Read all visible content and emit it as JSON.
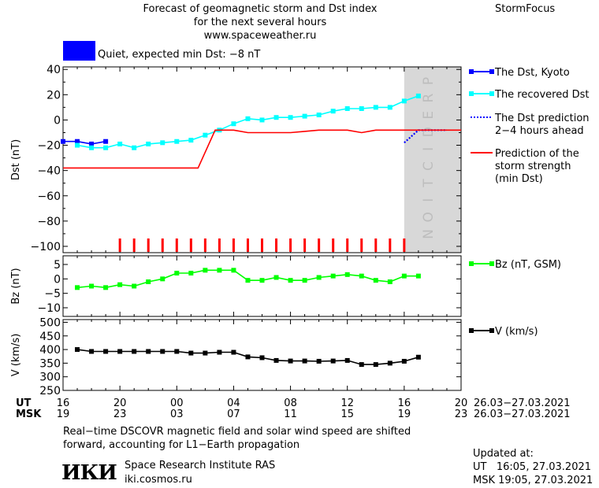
{
  "header": {
    "title_lines": [
      "Forecast of geomagnetic storm and Dst index",
      "for the next several hours",
      "www.spaceweather.ru"
    ],
    "brand": "StormFocus",
    "quiet_label": "Quiet, expected min Dst: −8 nT",
    "quiet_color": "#0000ff"
  },
  "footer": {
    "note_lines": [
      "Real−time DSCOVR magnetic field and solar wind speed are shifted",
      "forward, accounting for L1−Earth propagation"
    ],
    "logo": "ИКИ",
    "institute": "Space Research Institute RAS",
    "url": "iki.cosmos.ru",
    "updated_label": "Updated at:",
    "updated_ut": "UT   16:05, 27.03.2021",
    "updated_msk": "MSK 19:05, 27.03.2021"
  },
  "chart_data": [
    {
      "type": "line",
      "panel": "dst",
      "ylabel": "Dst (nT)",
      "ylim": [
        -105,
        42
      ],
      "yticks": [
        40,
        20,
        0,
        -20,
        -40,
        -60,
        -80,
        -100
      ],
      "ytick_labels": [
        "40",
        "20",
        "0",
        "−20",
        "−40",
        "−60",
        "−80",
        "−100"
      ],
      "xlim": [
        0,
        28
      ],
      "prediction_region": {
        "x": [
          24,
          28
        ],
        "label": "PREDICTION",
        "color": "#d8d8d8"
      },
      "legend_position": "right",
      "series": [
        {
          "name": "The Dst, Kyoto",
          "color": "#0000ff",
          "style": "solid-square",
          "x": [
            0,
            1,
            2,
            3
          ],
          "y": [
            -17,
            -17,
            -19,
            -17
          ]
        },
        {
          "name": "The recovered Dst",
          "color": "#00ffff",
          "style": "solid-square",
          "x": [
            1,
            2,
            3,
            4,
            5,
            6,
            7,
            8,
            9,
            10,
            11,
            12,
            13,
            14,
            15,
            16,
            17,
            18,
            19,
            20,
            21,
            22,
            23,
            24,
            25
          ],
          "y": [
            -20,
            -22,
            -22,
            -19,
            -22,
            -19,
            -18,
            -17,
            -16,
            -12,
            -8,
            -3,
            1,
            0,
            2,
            2,
            3,
            4,
            7,
            9,
            9,
            10,
            10,
            15,
            19
          ]
        },
        {
          "name": "The Dst prediction 2−4 hours ahead",
          "color": "#0000ff",
          "style": "dotted",
          "x": [
            24,
            25,
            26,
            27
          ],
          "y": [
            -18,
            -8,
            -8,
            -8
          ]
        },
        {
          "name": "Prediction of the storm strength (min Dst)",
          "color": "#ff0000",
          "style": "step",
          "x": [
            0,
            9.5,
            10.7,
            12,
            13,
            14,
            16,
            18,
            20,
            21,
            22,
            25,
            28
          ],
          "y": [
            -38,
            -38,
            -8,
            -8,
            -10,
            -10,
            -10,
            -8,
            -8,
            -10,
            -8,
            -8,
            -8
          ]
        }
      ],
      "legend_labels": [
        {
          "text_lines": [
            "The Dst, Kyoto"
          ]
        },
        {
          "text_lines": [
            "The recovered Dst"
          ]
        },
        {
          "text_lines": [
            "The Dst prediction",
            "2−4 hours ahead"
          ]
        },
        {
          "text_lines": [
            "Prediction of the",
            "storm strength",
            "(min Dst)"
          ]
        }
      ],
      "storm_markers": {
        "color": "#ff0000",
        "x": [
          4,
          5,
          6,
          7,
          8,
          9,
          10,
          11,
          12,
          13,
          14,
          15,
          16,
          17,
          18,
          19,
          20,
          21,
          22,
          23,
          24
        ]
      }
    },
    {
      "type": "line",
      "panel": "bz",
      "ylabel": "Bz (nT)",
      "ylim": [
        -13,
        8
      ],
      "yticks": [
        5,
        0,
        -5,
        -10
      ],
      "ytick_labels": [
        "5",
        "0",
        "−5",
        "−10"
      ],
      "xlim": [
        0,
        28
      ],
      "series": [
        {
          "name": "Bz (nT, GSM)",
          "color": "#00ff00",
          "style": "solid-square",
          "x": [
            1,
            2,
            3,
            4,
            5,
            6,
            7,
            8,
            9,
            10,
            11,
            12,
            13,
            14,
            15,
            16,
            17,
            18,
            19,
            20,
            21,
            22,
            23,
            24,
            25
          ],
          "y": [
            -3,
            -2.5,
            -3,
            -2,
            -2.5,
            -1,
            0,
            2,
            2,
            3,
            3,
            3,
            -0.5,
            -0.5,
            0.5,
            -0.5,
            -0.5,
            0.5,
            1,
            1.5,
            1,
            -0.5,
            -1,
            1,
            1
          ]
        }
      ],
      "legend_labels": [
        {
          "text_lines": [
            "Bz (nT, GSM)"
          ]
        }
      ]
    },
    {
      "type": "line",
      "panel": "v",
      "ylabel": "V (km/s)",
      "ylim": [
        250,
        510
      ],
      "yticks": [
        500,
        450,
        400,
        350,
        300,
        250
      ],
      "ytick_labels": [
        "500",
        "450",
        "400",
        "350",
        "300",
        "250"
      ],
      "xlim": [
        0,
        28
      ],
      "series": [
        {
          "name": "V (km/s)",
          "color": "#000000",
          "style": "solid-square",
          "x": [
            1,
            2,
            3,
            4,
            5,
            6,
            7,
            8,
            9,
            10,
            11,
            12,
            13,
            14,
            15,
            16,
            17,
            18,
            19,
            20,
            21,
            22,
            23,
            24,
            25
          ],
          "y": [
            400,
            393,
            393,
            393,
            393,
            393,
            393,
            393,
            387,
            387,
            390,
            390,
            373,
            370,
            360,
            358,
            358,
            357,
            358,
            360,
            345,
            345,
            350,
            357,
            372
          ]
        }
      ],
      "legend_labels": [
        {
          "text_lines": [
            "V (km/s)"
          ]
        }
      ]
    }
  ],
  "x_axis": {
    "ticks": [
      0,
      4,
      8,
      12,
      16,
      20,
      24,
      28
    ],
    "ut_label": "UT",
    "msk_label": "MSK",
    "ut_tick_labels": [
      "16",
      "20",
      "00",
      "04",
      "08",
      "12",
      "16",
      "20"
    ],
    "msk_tick_labels": [
      "19",
      "23",
      "03",
      "07",
      "11",
      "15",
      "19",
      "23"
    ],
    "ut_range": "26.03−27.03.2021",
    "msk_range": "26.03−27.03.2021"
  }
}
